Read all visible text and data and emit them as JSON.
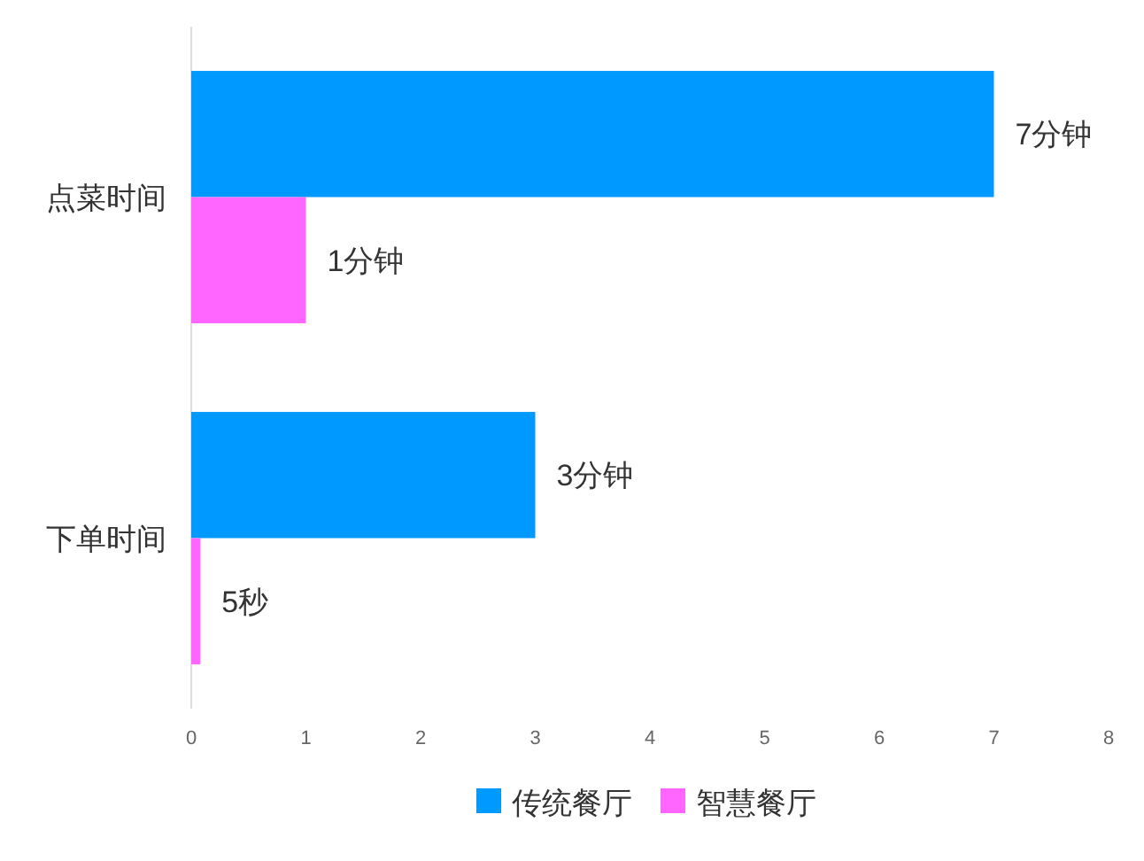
{
  "chart_data": {
    "type": "bar",
    "orientation": "horizontal",
    "categories": [
      "点菜时间",
      "下单时间"
    ],
    "series": [
      {
        "name": "传统餐厅",
        "color": "#0099ff",
        "values": [
          7,
          3
        ]
      },
      {
        "name": "智慧餐厅",
        "color": "#ff66ff",
        "values": [
          1,
          0.08
        ]
      }
    ],
    "annotations": [
      {
        "text": "7分钟",
        "x": 7,
        "y": "点菜时间"
      },
      {
        "text": "1分钟",
        "x": 1,
        "y": "点菜时间"
      },
      {
        "text": "3分钟",
        "x": 3,
        "y": "下单时间"
      },
      {
        "text": "5秒",
        "x": 0.08,
        "y": "下单时间"
      }
    ],
    "xlim": [
      0,
      8
    ],
    "xticks": [
      0,
      1,
      2,
      3,
      4,
      5,
      6,
      7,
      8
    ],
    "legend": "bottom"
  }
}
